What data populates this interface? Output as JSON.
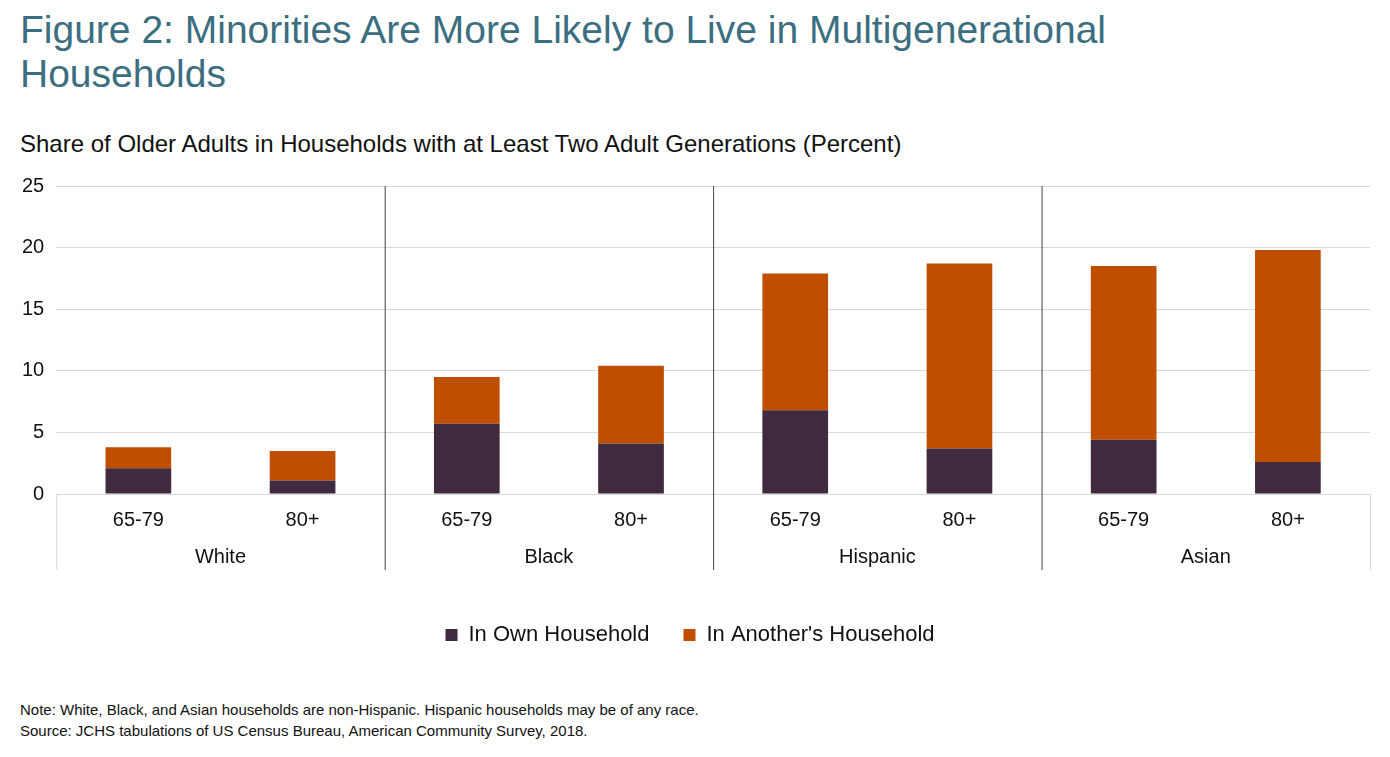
{
  "chart_data": {
    "type": "bar",
    "title": "Figure 2: Minorities Are More Likely to Live in Multigenerational Households",
    "subtitle": "Share of Older Adults in Households with at Least Two Adult Generations (Percent)",
    "notes": [
      "Note: White, Black, and Asian households are non-Hispanic. Hispanic households may be of any race.",
      "Source: JCHS tabulations of US Census Bureau, American Community Survey, 2018."
    ],
    "categories": [
      "65-79",
      "80+",
      "65-79",
      "80+",
      "65-79",
      "80+",
      "65-79",
      "80+"
    ],
    "groups": [
      "White",
      "Black",
      "Hispanic",
      "Asian"
    ],
    "series": [
      {
        "name": "In Own Household",
        "color": "#3f2a3e",
        "values": [
          2.1,
          1.1,
          5.7,
          4.1,
          6.8,
          3.7,
          4.4,
          2.6
        ]
      },
      {
        "name": "In Another's Household",
        "color": "#c04e00",
        "values": [
          1.7,
          2.4,
          3.8,
          6.3,
          11.1,
          15.0,
          14.1,
          17.2
        ]
      }
    ],
    "stacked": true,
    "ylim": [
      0,
      25
    ],
    "yticks": [
      0,
      5,
      10,
      15,
      20,
      25
    ],
    "grid": true,
    "legend": "bottom"
  }
}
